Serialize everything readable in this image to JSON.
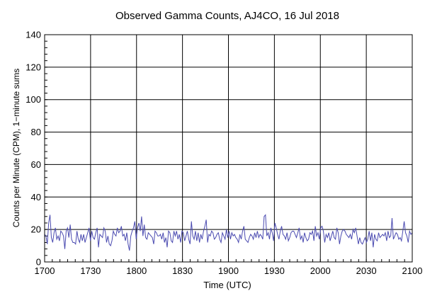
{
  "chart_data": {
    "type": "line",
    "title": "Observed Gamma Counts, AJ4CO, 16 Jul 2018",
    "xlabel": "Time (UTC)",
    "ylabel": "Counts per Minute (CPM), 1−minute sums",
    "x_tick_labels": [
      "1700",
      "1730",
      "1800",
      "1830",
      "1900",
      "1930",
      "2000",
      "2030",
      "2100"
    ],
    "y_ticks": [
      0,
      20,
      40,
      60,
      80,
      100,
      120,
      140
    ],
    "xlim_minutes": [
      0,
      240
    ],
    "ylim": [
      0,
      140
    ],
    "grid": true,
    "colors": {
      "series": "#4a4ab0",
      "grid": "#000000"
    },
    "series": [
      {
        "values": [
          17,
          16,
          11,
          24,
          29,
          15,
          12,
          18,
          21,
          14,
          16,
          13,
          19,
          18,
          16,
          8,
          19,
          21,
          15,
          23,
          14,
          12,
          12,
          11,
          19,
          14,
          12,
          17,
          13,
          17,
          12,
          15,
          18,
          21,
          13,
          19,
          15,
          14,
          18,
          21,
          9,
          17,
          16,
          15,
          21,
          19,
          12,
          16,
          11,
          10,
          13,
          19,
          17,
          16,
          21,
          18,
          19,
          22,
          16,
          17,
          13,
          18,
          11,
          7,
          16,
          19,
          21,
          25,
          14,
          21,
          24,
          19,
          28,
          16,
          23,
          15,
          14,
          18,
          17,
          16,
          15,
          11,
          19,
          18,
          16,
          16,
          17,
          14,
          18,
          12,
          15,
          9,
          19,
          18,
          13,
          12,
          19,
          16,
          19,
          14,
          17,
          12,
          19,
          18,
          13,
          16,
          19,
          14,
          11,
          25,
          16,
          14,
          19,
          13,
          18,
          12,
          17,
          14,
          19,
          22,
          26,
          12,
          17,
          16,
          19,
          18,
          14,
          15,
          17,
          18,
          14,
          12,
          18,
          16,
          14,
          20,
          15,
          19,
          14,
          18,
          16,
          17,
          15,
          14,
          12,
          17,
          14,
          19,
          22,
          14,
          13,
          12,
          15,
          17,
          16,
          14,
          18,
          15,
          19,
          15,
          17,
          16,
          14,
          28,
          29,
          16,
          18,
          14,
          21,
          18,
          13,
          24,
          21,
          17,
          14,
          19,
          22,
          17,
          16,
          14,
          18,
          13,
          15,
          18,
          19,
          19,
          17,
          15,
          18,
          21,
          14,
          16,
          12,
          18,
          15,
          13,
          14,
          18,
          17,
          19,
          13,
          22,
          16,
          18,
          14,
          21,
          22,
          19,
          12,
          17,
          15,
          18,
          13,
          16,
          19,
          15,
          14,
          21,
          18,
          11,
          16,
          19,
          20,
          19,
          17,
          16,
          15,
          17,
          14,
          20,
          18,
          21,
          16,
          11,
          15,
          12,
          11,
          13,
          15,
          12,
          14,
          19,
          13,
          18,
          9,
          17,
          14,
          13,
          18,
          15,
          16,
          17,
          16,
          18,
          13,
          19,
          15,
          16,
          27,
          14,
          16,
          18,
          17,
          14,
          15,
          13,
          19,
          25,
          18,
          16,
          12,
          19,
          17,
          18
        ]
      }
    ]
  }
}
